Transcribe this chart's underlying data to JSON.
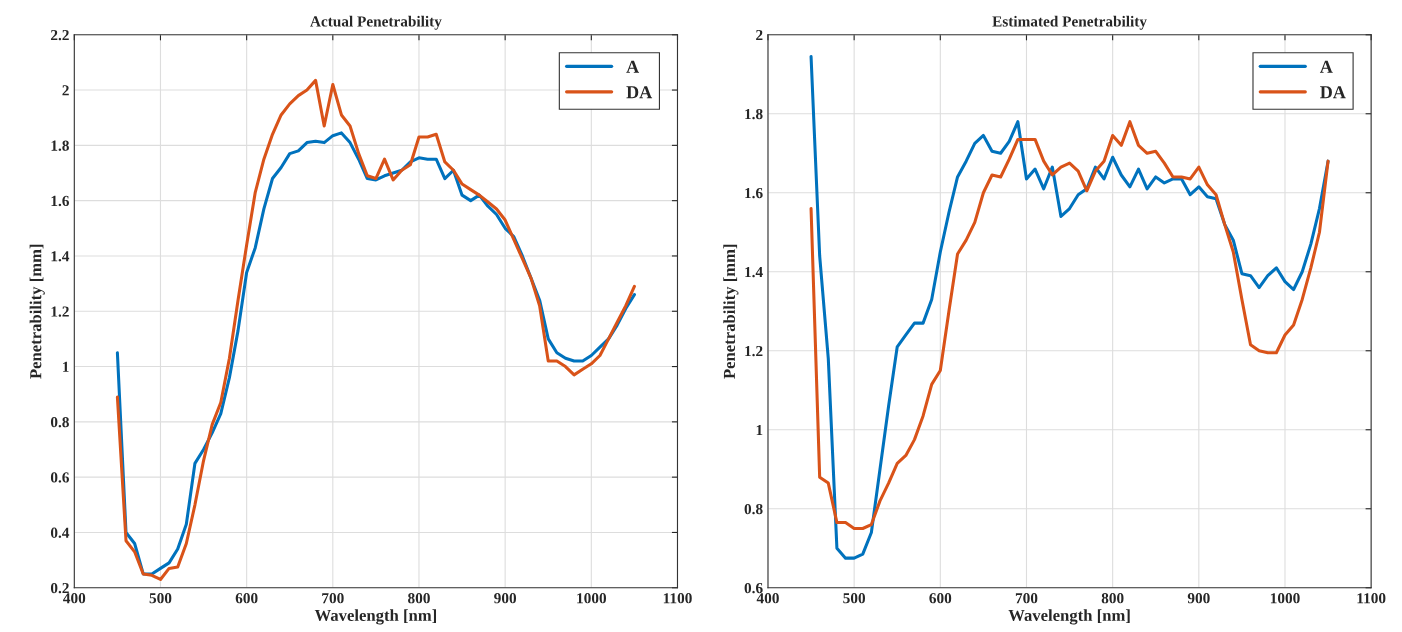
{
  "chart_data": [
    {
      "type": "line",
      "title": "Actual Penetrability",
      "xlabel": "Wavelength [nm]",
      "ylabel": "Penetrability [mm]",
      "x": [
        450,
        460,
        470,
        480,
        490,
        500,
        510,
        520,
        530,
        540,
        550,
        560,
        570,
        580,
        590,
        600,
        610,
        620,
        630,
        640,
        650,
        660,
        670,
        680,
        690,
        700,
        710,
        720,
        730,
        740,
        750,
        760,
        770,
        780,
        790,
        800,
        810,
        820,
        830,
        840,
        850,
        860,
        870,
        880,
        890,
        900,
        910,
        920,
        930,
        940,
        950,
        960,
        970,
        980,
        990,
        1000,
        1010,
        1020,
        1030,
        1040,
        1050
      ],
      "series": [
        {
          "name": "A",
          "color": "#0072bd",
          "values": [
            1.05,
            0.4,
            0.36,
            0.25,
            0.25,
            0.27,
            0.29,
            0.34,
            0.43,
            0.65,
            0.7,
            0.76,
            0.83,
            0.96,
            1.13,
            1.34,
            1.43,
            1.57,
            1.68,
            1.72,
            1.77,
            1.78,
            1.81,
            1.815,
            1.81,
            1.835,
            1.845,
            1.81,
            1.75,
            1.68,
            1.675,
            1.69,
            1.7,
            1.71,
            1.74,
            1.755,
            1.75,
            1.75,
            1.68,
            1.71,
            1.62,
            1.6,
            1.62,
            1.58,
            1.55,
            1.5,
            1.47,
            1.4,
            1.32,
            1.24,
            1.1,
            1.05,
            1.03,
            1.02,
            1.02,
            1.04,
            1.07,
            1.1,
            1.15,
            1.21,
            1.26
          ]
        },
        {
          "name": "DA",
          "color": "#d95319",
          "values": [
            0.89,
            0.37,
            0.33,
            0.25,
            0.245,
            0.23,
            0.27,
            0.275,
            0.36,
            0.5,
            0.66,
            0.79,
            0.87,
            1.03,
            1.24,
            1.44,
            1.63,
            1.75,
            1.84,
            1.91,
            1.95,
            1.98,
            2.0,
            2.035,
            1.87,
            2.02,
            1.91,
            1.87,
            1.77,
            1.69,
            1.68,
            1.75,
            1.675,
            1.71,
            1.73,
            1.83,
            1.83,
            1.84,
            1.74,
            1.71,
            1.66,
            1.64,
            1.62,
            1.595,
            1.57,
            1.53,
            1.46,
            1.39,
            1.32,
            1.22,
            1.02,
            1.02,
            1.0,
            0.97,
            0.99,
            1.01,
            1.04,
            1.1,
            1.16,
            1.22,
            1.29
          ]
        }
      ],
      "xlim": [
        400,
        1100
      ],
      "xticks": [
        400,
        500,
        600,
        700,
        800,
        900,
        1000,
        1100
      ],
      "ylim": [
        0.2,
        2.2
      ],
      "yticks": [
        0.2,
        0.4,
        0.6,
        0.8,
        1,
        1.2,
        1.4,
        1.6,
        1.8,
        2,
        2.2
      ],
      "grid": true,
      "legend": "top right",
      "marker": "none",
      "line_style": "solid"
    },
    {
      "type": "line",
      "title": "Estimated Penetrability",
      "xlabel": "Wavelength [nm]",
      "ylabel": "Penetrability [mm]",
      "x": [
        450,
        460,
        470,
        480,
        490,
        500,
        510,
        520,
        530,
        540,
        550,
        560,
        570,
        580,
        590,
        600,
        610,
        620,
        630,
        640,
        650,
        660,
        670,
        680,
        690,
        700,
        710,
        720,
        730,
        740,
        750,
        760,
        770,
        780,
        790,
        800,
        810,
        820,
        830,
        840,
        850,
        860,
        870,
        880,
        890,
        900,
        910,
        920,
        930,
        940,
        950,
        960,
        970,
        980,
        990,
        1000,
        1010,
        1020,
        1030,
        1040,
        1050
      ],
      "series": [
        {
          "name": "A",
          "color": "#0072bd",
          "values": [
            1.945,
            1.44,
            1.18,
            0.7,
            0.675,
            0.675,
            0.685,
            0.74,
            0.9,
            1.06,
            1.21,
            1.24,
            1.27,
            1.27,
            1.33,
            1.45,
            1.55,
            1.64,
            1.68,
            1.725,
            1.745,
            1.705,
            1.7,
            1.73,
            1.78,
            1.635,
            1.66,
            1.61,
            1.665,
            1.54,
            1.56,
            1.595,
            1.61,
            1.665,
            1.635,
            1.69,
            1.645,
            1.615,
            1.66,
            1.61,
            1.64,
            1.625,
            1.635,
            1.635,
            1.595,
            1.615,
            1.59,
            1.585,
            1.52,
            1.48,
            1.395,
            1.39,
            1.36,
            1.39,
            1.41,
            1.375,
            1.355,
            1.4,
            1.47,
            1.56,
            1.68
          ]
        },
        {
          "name": "DA",
          "color": "#d95319",
          "values": [
            1.56,
            0.88,
            0.865,
            0.765,
            0.765,
            0.75,
            0.75,
            0.76,
            0.82,
            0.865,
            0.915,
            0.935,
            0.975,
            1.035,
            1.115,
            1.15,
            1.3,
            1.445,
            1.48,
            1.525,
            1.6,
            1.645,
            1.64,
            1.685,
            1.735,
            1.735,
            1.735,
            1.68,
            1.645,
            1.665,
            1.675,
            1.655,
            1.605,
            1.655,
            1.68,
            1.745,
            1.72,
            1.78,
            1.72,
            1.7,
            1.705,
            1.675,
            1.64,
            1.64,
            1.635,
            1.665,
            1.62,
            1.595,
            1.52,
            1.45,
            1.33,
            1.215,
            1.2,
            1.195,
            1.195,
            1.24,
            1.265,
            1.33,
            1.41,
            1.5,
            1.68
          ]
        }
      ],
      "xlim": [
        400,
        1100
      ],
      "xticks": [
        400,
        500,
        600,
        700,
        800,
        900,
        1000,
        1100
      ],
      "ylim": [
        0.6,
        2
      ],
      "yticks": [
        0.6,
        0.8,
        1,
        1.2,
        1.4,
        1.6,
        1.8,
        2
      ],
      "grid": true,
      "legend": "top right",
      "marker": "none",
      "line_style": "solid"
    }
  ]
}
